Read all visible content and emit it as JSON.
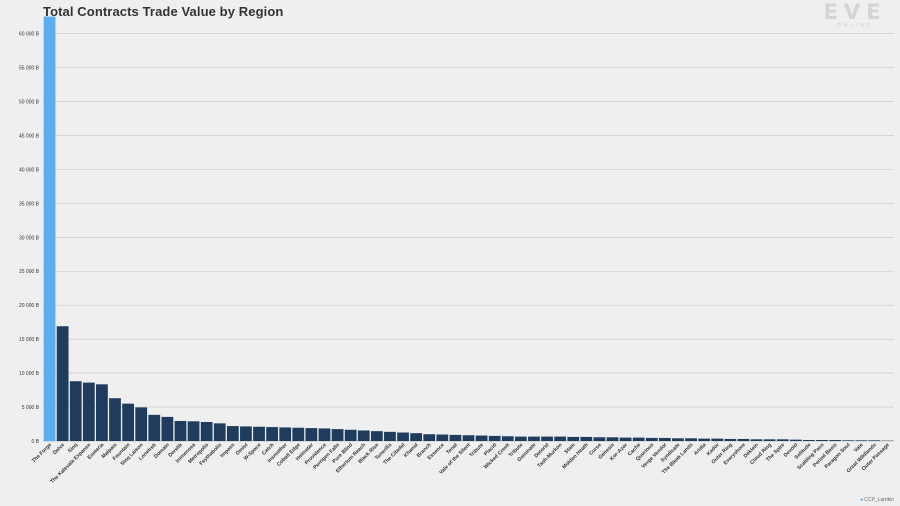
{
  "title": "Total Contracts Trade Value by Region",
  "logo": {
    "main": "EVE",
    "sub": "ONLINE"
  },
  "credit": "CCP_Larrikin",
  "colors": {
    "highlight": "#5aaef0",
    "bar": "#1f3c5e",
    "grid": "#c4c4c4",
    "background": "#efefef"
  },
  "chart_data": {
    "type": "bar",
    "title": "Total Contracts Trade Value by Region",
    "xlabel": "",
    "ylabel": "",
    "ylim": [
      0,
      62000
    ],
    "yticks": [
      0,
      5000,
      10000,
      15000,
      20000,
      25000,
      30000,
      35000,
      40000,
      45000,
      50000,
      55000,
      60000
    ],
    "ytick_labels": [
      "0 B",
      "5 000 B",
      "10 000 B",
      "15 000 B",
      "20 000 B",
      "25 000 B",
      "30 000 B",
      "35 000 B",
      "40 000 B",
      "45 000 B",
      "50 000 B",
      "55 000 B",
      "60 000 B"
    ],
    "grid": "horizontal",
    "highlight_index": 0,
    "categories": [
      "The Forge",
      "Delve",
      "Sinq",
      "The Kalevala Expanse",
      "Esoteria",
      "Malpais",
      "Fountain",
      "Sinq Laison",
      "Lonetrek",
      "Domain",
      "Derelik",
      "Immensea",
      "Metropolis",
      "Feythabolis",
      "Impass",
      "Omist",
      "W-Space",
      "Catch",
      "Insmother",
      "Cobalt Edge",
      "Heimatar",
      "Providence",
      "Perrigen Falls",
      "Pure Blind",
      "Etherium Reach",
      "Black Rise",
      "Tenerifis",
      "The Citadel",
      "Khanid",
      "Branch",
      "Essence",
      "Tenal",
      "Vale of the Silent",
      "Tribute",
      "Placid",
      "Wicked Creek",
      "Tribute",
      "Geminate",
      "Detorid",
      "Tash-Murkon",
      "Stain",
      "Molden Heath",
      "Curse",
      "Genesis",
      "Kor-Azor",
      "Cache",
      "Querious",
      "Verge Vendor",
      "Syndicate",
      "The Bleak Lands",
      "Aridia",
      "Kador",
      "Outer Ring",
      "Everyshore",
      "Deklein",
      "Cloud Ring",
      "The Spire",
      "Devoid",
      "Solitude",
      "Scalding Pass",
      "Period Basis",
      "Paragon Soul",
      "Vale",
      "Great Wildlands",
      "Outer Passage"
    ],
    "values": [
      62500,
      16900,
      8800,
      8600,
      8350,
      6300,
      5500,
      4950,
      3850,
      3550,
      2950,
      2900,
      2800,
      2600,
      2200,
      2150,
      2100,
      2050,
      2000,
      1950,
      1900,
      1850,
      1750,
      1650,
      1550,
      1450,
      1350,
      1250,
      1150,
      1000,
      950,
      900,
      850,
      800,
      750,
      700,
      650,
      650,
      650,
      650,
      600,
      600,
      550,
      550,
      500,
      500,
      450,
      450,
      400,
      400,
      350,
      350,
      300,
      300,
      250,
      250,
      250,
      200,
      150,
      150,
      150,
      100,
      100,
      100,
      50
    ]
  }
}
